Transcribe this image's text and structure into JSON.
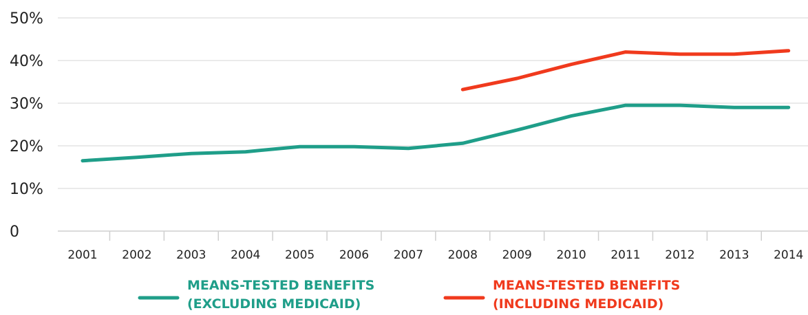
{
  "chart_data": {
    "type": "line",
    "title": "",
    "xlabel": "",
    "ylabel": "",
    "x": [
      "2001",
      "2002",
      "2003",
      "2004",
      "2005",
      "2006",
      "2007",
      "2008",
      "2009",
      "2010",
      "2011",
      "2012",
      "2013",
      "2014"
    ],
    "ylim": [
      0,
      50
    ],
    "y_ticks": [
      {
        "value": 0,
        "label": "0"
      },
      {
        "value": 10,
        "label": "10%"
      },
      {
        "value": 20,
        "label": "20%"
      },
      {
        "value": 30,
        "label": "30%"
      },
      {
        "value": 40,
        "label": "40%"
      },
      {
        "value": 50,
        "label": "50%"
      }
    ],
    "grid": true,
    "legend_position": "bottom",
    "series": [
      {
        "name_lines": [
          "MEANS-TESTED BENEFITS",
          "(EXCLUDING MEDICAID)"
        ],
        "color": "#1f9e89",
        "values": [
          16.5,
          17.3,
          18.2,
          18.6,
          19.8,
          19.8,
          19.4,
          20.6,
          23.7,
          27.0,
          29.5,
          29.5,
          29.0,
          29.0
        ]
      },
      {
        "name_lines": [
          "MEANS-TESTED BENEFITS",
          "(INCLUDING MEDICAID)"
        ],
        "color": "#f03a1d",
        "values": [
          null,
          null,
          null,
          null,
          null,
          null,
          null,
          33.2,
          35.8,
          39.1,
          42.0,
          41.5,
          41.5,
          42.3
        ]
      }
    ]
  }
}
